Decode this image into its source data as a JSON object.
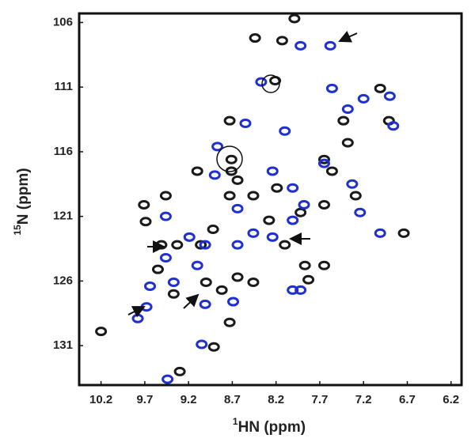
{
  "chart_data": {
    "type": "scatter",
    "x_label": {
      "sup": "1",
      "text": "HN (ppm)"
    },
    "y_label": {
      "sup": "15",
      "text": "N (ppm)"
    },
    "xlim": [
      10.45,
      6.08
    ],
    "ylim": [
      134.05,
      105.3
    ],
    "xticks": [
      10.2,
      9.7,
      9.2,
      8.7,
      8.2,
      7.7,
      7.2,
      6.7,
      6.2
    ],
    "yticks": [
      106,
      111,
      116,
      121,
      126,
      131
    ],
    "series": [
      {
        "color": "#1a1a1a",
        "x": [
          7.99,
          8.44,
          8.13,
          8.21,
          8.73,
          8.71,
          8.71,
          7.38,
          7.43,
          7.01,
          6.91,
          9.71,
          9.46,
          9.69,
          9.51,
          9.33,
          9.06,
          8.92,
          8.73,
          8.46,
          8.28,
          7.92,
          7.65,
          7.56,
          7.65,
          7.29,
          8.1,
          7.87,
          7.65,
          8.64,
          8.46,
          9.0,
          8.82,
          9.55,
          9.37,
          8.73,
          8.91,
          10.2,
          9.3,
          6.74,
          8.64,
          9.1,
          8.19,
          7.83
        ],
        "y": [
          105.7,
          107.2,
          107.4,
          110.5,
          113.6,
          116.6,
          117.5,
          115.3,
          113.6,
          111.1,
          113.6,
          120.1,
          119.4,
          121.4,
          123.2,
          123.2,
          123.2,
          122.0,
          119.4,
          119.4,
          121.3,
          120.7,
          120.1,
          117.5,
          116.6,
          119.4,
          123.2,
          124.8,
          124.8,
          125.7,
          126.1,
          126.1,
          126.7,
          125.1,
          127.0,
          129.2,
          131.1,
          129.9,
          133.0,
          122.3,
          118.2,
          117.5,
          118.8,
          125.9
        ]
      },
      {
        "color": "#1f2fd0",
        "x": [
          7.92,
          7.58,
          8.37,
          7.56,
          7.2,
          7.38,
          6.9,
          6.86,
          8.55,
          8.1,
          8.87,
          8.9,
          7.65,
          7.33,
          7.24,
          9.46,
          9.19,
          9.01,
          8.64,
          8.46,
          8.24,
          8.01,
          9.46,
          9.1,
          9.64,
          9.37,
          9.68,
          9.78,
          9.01,
          8.69,
          9.05,
          9.44,
          7.92,
          8.01,
          7.01,
          8.24,
          7.88,
          8.64,
          8.01
        ],
        "y": [
          107.8,
          107.8,
          110.6,
          111.1,
          111.9,
          112.7,
          111.7,
          114.0,
          113.8,
          114.4,
          115.6,
          117.8,
          116.9,
          118.5,
          120.7,
          121.0,
          122.6,
          123.2,
          123.2,
          122.3,
          122.6,
          121.3,
          124.2,
          124.8,
          126.4,
          126.1,
          128.0,
          128.9,
          127.8,
          127.6,
          130.9,
          133.6,
          126.7,
          126.7,
          122.3,
          117.5,
          120.1,
          120.4,
          118.8
        ]
      }
    ]
  }
}
